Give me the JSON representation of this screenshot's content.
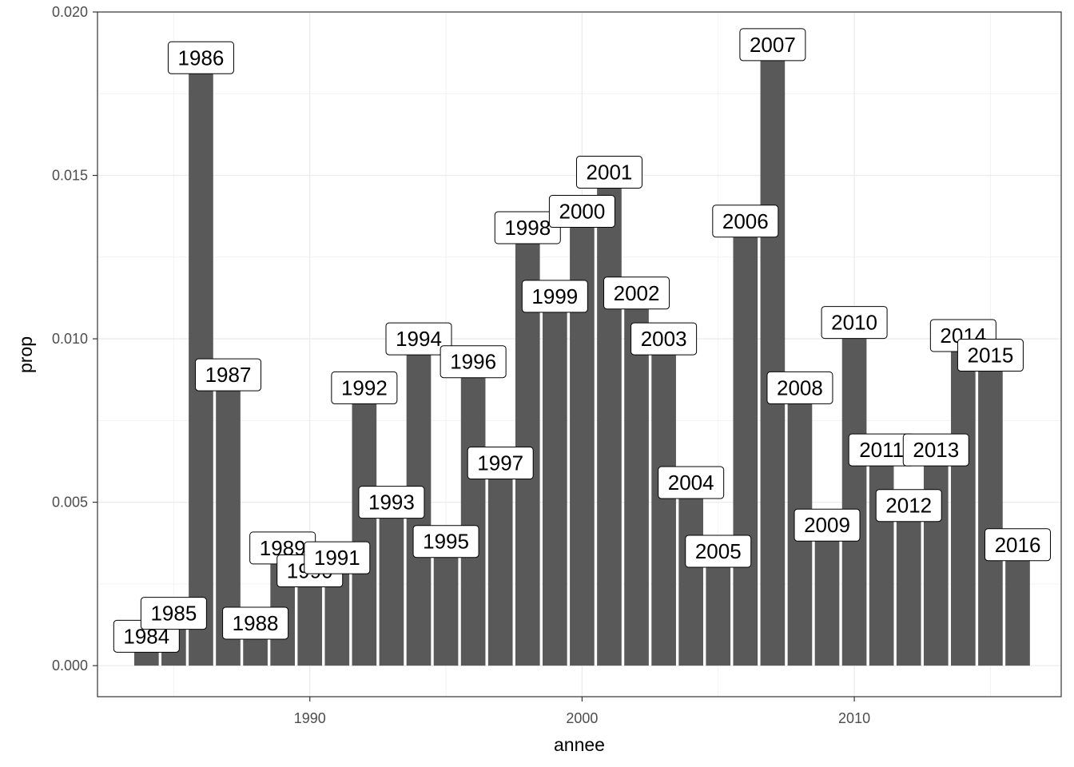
{
  "chart_data": {
    "type": "bar",
    "xlabel": "annee",
    "ylabel": "prop",
    "xlim": [
      1982.2,
      2017.6
    ],
    "ylim": [
      -0.00095,
      0.02
    ],
    "x_ticks": [
      1990,
      2000,
      2010
    ],
    "x_tick_labels": [
      "1990",
      "2000",
      "2010"
    ],
    "y_ticks": [
      0.0,
      0.005,
      0.01,
      0.015,
      0.02
    ],
    "y_tick_labels": [
      "0.000",
      "0.005",
      "0.010",
      "0.015",
      "0.020"
    ],
    "grid": true,
    "bar_color": "#595959",
    "x": [
      1984,
      1985,
      1986,
      1987,
      1988,
      1989,
      1990,
      1991,
      1992,
      1993,
      1994,
      1995,
      1996,
      1997,
      1998,
      1999,
      2000,
      2001,
      2002,
      2003,
      2004,
      2005,
      2006,
      2007,
      2008,
      2009,
      2010,
      2011,
      2012,
      2013,
      2014,
      2015,
      2016
    ],
    "labels": [
      "1984",
      "1985",
      "1986",
      "1987",
      "1988",
      "1989",
      "1990",
      "1991",
      "1992",
      "1993",
      "1994",
      "1995",
      "1996",
      "1997",
      "1998",
      "1999",
      "2000",
      "2001",
      "2002",
      "2003",
      "2004",
      "2005",
      "2006",
      "2007",
      "2008",
      "2009",
      "2010",
      "2011",
      "2012",
      "2013",
      "2014",
      "2015",
      "2016"
    ],
    "values": [
      0.0009,
      0.0016,
      0.0186,
      0.0089,
      0.0013,
      0.0036,
      0.0029,
      0.0033,
      0.0085,
      0.005,
      0.01,
      0.0038,
      0.0093,
      0.0062,
      0.0134,
      0.0113,
      0.0139,
      0.0151,
      0.0114,
      0.01,
      0.0056,
      0.0035,
      0.0136,
      0.019,
      0.0085,
      0.0043,
      0.0105,
      0.0066,
      0.0049,
      0.0066,
      0.0101,
      0.0095,
      0.0037
    ]
  }
}
